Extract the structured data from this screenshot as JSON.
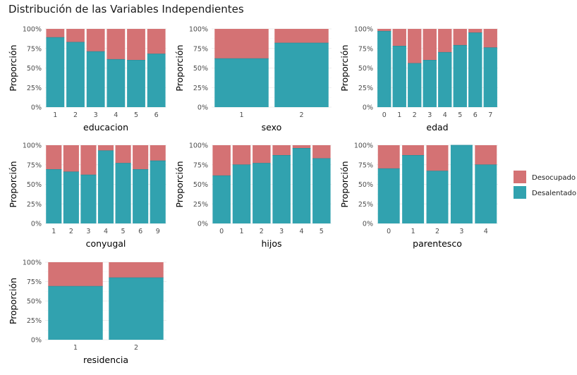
{
  "title": "Distribución de las Variables Independientes",
  "legend": {
    "items": [
      {
        "label": "Desocupado",
        "color": "#D47274"
      },
      {
        "label": "Desalentado",
        "color": "#31A2AF"
      }
    ]
  },
  "chart_data": [
    {
      "type": "bar",
      "stacked": true,
      "xlabel": "educacion",
      "ylabel": "Proporción",
      "categories": [
        "1",
        "2",
        "3",
        "4",
        "5",
        "6"
      ],
      "series": [
        {
          "name": "Desalentado",
          "values": [
            0.89,
            0.83,
            0.71,
            0.61,
            0.6,
            0.68
          ]
        },
        {
          "name": "Desocupado",
          "values": [
            0.11,
            0.17,
            0.29,
            0.39,
            0.4,
            0.32
          ]
        }
      ],
      "ylim": [
        0,
        1
      ],
      "yticks": [
        "0%",
        "25%",
        "50%",
        "75%",
        "100%"
      ]
    },
    {
      "type": "bar",
      "stacked": true,
      "xlabel": "sexo",
      "ylabel": "Proporción",
      "categories": [
        "1",
        "2"
      ],
      "series": [
        {
          "name": "Desalentado",
          "values": [
            0.62,
            0.82
          ]
        },
        {
          "name": "Desocupado",
          "values": [
            0.38,
            0.18
          ]
        }
      ],
      "ylim": [
        0,
        1
      ],
      "yticks": [
        "0%",
        "25%",
        "50%",
        "75%",
        "100%"
      ]
    },
    {
      "type": "bar",
      "stacked": true,
      "xlabel": "edad",
      "ylabel": "Proporción",
      "categories": [
        "0",
        "1",
        "2",
        "3",
        "4",
        "5",
        "6",
        "7"
      ],
      "series": [
        {
          "name": "Desalentado",
          "values": [
            0.97,
            0.78,
            0.56,
            0.6,
            0.7,
            0.79,
            0.95,
            0.76
          ]
        },
        {
          "name": "Desocupado",
          "values": [
            0.03,
            0.22,
            0.44,
            0.4,
            0.3,
            0.21,
            0.05,
            0.24
          ]
        }
      ],
      "ylim": [
        0,
        1
      ],
      "yticks": [
        "0%",
        "25%",
        "50%",
        "75%",
        "100%"
      ]
    },
    {
      "type": "bar",
      "stacked": true,
      "xlabel": "conyugal",
      "ylabel": "Proporción",
      "categories": [
        "1",
        "2",
        "3",
        "4",
        "5",
        "6",
        "9"
      ],
      "series": [
        {
          "name": "Desalentado",
          "values": [
            0.69,
            0.66,
            0.62,
            0.93,
            0.77,
            0.69,
            0.8
          ]
        },
        {
          "name": "Desocupado",
          "values": [
            0.31,
            0.34,
            0.38,
            0.07,
            0.23,
            0.31,
            0.2
          ]
        }
      ],
      "ylim": [
        0,
        1
      ],
      "yticks": [
        "0%",
        "25%",
        "50%",
        "75%",
        "100%"
      ]
    },
    {
      "type": "bar",
      "stacked": true,
      "xlabel": "hijos",
      "ylabel": "Proporción",
      "categories": [
        "0",
        "1",
        "2",
        "3",
        "4",
        "5"
      ],
      "series": [
        {
          "name": "Desalentado",
          "values": [
            0.61,
            0.75,
            0.77,
            0.87,
            0.96,
            0.83
          ]
        },
        {
          "name": "Desocupado",
          "values": [
            0.39,
            0.25,
            0.23,
            0.13,
            0.04,
            0.17
          ]
        }
      ],
      "ylim": [
        0,
        1
      ],
      "yticks": [
        "0%",
        "25%",
        "50%",
        "75%",
        "100%"
      ]
    },
    {
      "type": "bar",
      "stacked": true,
      "xlabel": "parentesco",
      "ylabel": "Proporción",
      "categories": [
        "0",
        "1",
        "2",
        "3",
        "4"
      ],
      "series": [
        {
          "name": "Desalentado",
          "values": [
            0.7,
            0.87,
            0.67,
            1.0,
            0.75
          ]
        },
        {
          "name": "Desocupado",
          "values": [
            0.3,
            0.13,
            0.33,
            0.0,
            0.25
          ]
        }
      ],
      "ylim": [
        0,
        1
      ],
      "yticks": [
        "0%",
        "25%",
        "50%",
        "75%",
        "100%"
      ]
    },
    {
      "type": "bar",
      "stacked": true,
      "xlabel": "residencia",
      "ylabel": "Proporción",
      "categories": [
        "1",
        "2"
      ],
      "series": [
        {
          "name": "Desalentado",
          "values": [
            0.69,
            0.8
          ]
        },
        {
          "name": "Desocupado",
          "values": [
            0.31,
            0.2
          ]
        }
      ],
      "ylim": [
        0,
        1
      ],
      "yticks": [
        "0%",
        "25%",
        "50%",
        "75%",
        "100%"
      ]
    }
  ]
}
